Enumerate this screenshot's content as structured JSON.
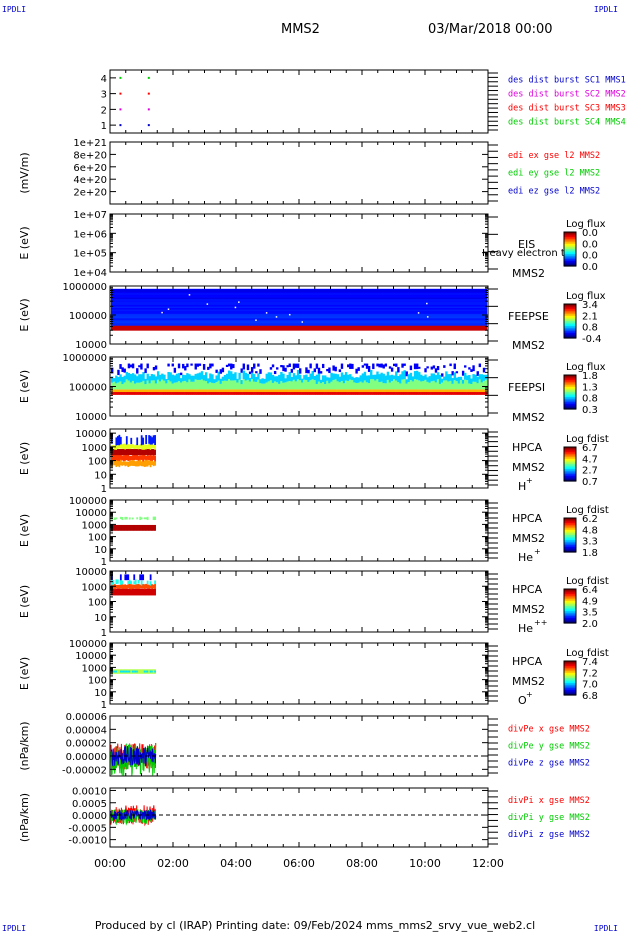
{
  "corner_label": "IPDLI",
  "header": {
    "spacecraft": "MMS2",
    "datetime": "03/Mar/2018 00:00"
  },
  "footer": "Produced by cl (IRAP)   Printing date: 09/Feb/2024   mms_mms2_srvy_vue_web2.cl",
  "colors": {
    "red": "#ff0000",
    "green": "#00cc00",
    "blue": "#0000cc",
    "magenta": "#dd00dd",
    "black": "#000000"
  },
  "chart_data": [
    {
      "type": "scatter",
      "panel": "burst-availability",
      "yticks": [
        "1",
        "2",
        "3",
        "4"
      ],
      "ylim": [
        0.5,
        4.5
      ],
      "series": [
        {
          "name": "des dist burst SC1 MMS1",
          "color": "#0000cc",
          "x_hours": [
            0.3,
            1.2
          ],
          "y": [
            1,
            1
          ]
        },
        {
          "name": "des dist burst SC2 MMS2",
          "color": "#dd00dd",
          "x_hours": [
            0.3,
            1.2
          ],
          "y": [
            2,
            2
          ]
        },
        {
          "name": "des dist burst SC3 MMS3",
          "color": "#ff0000",
          "x_hours": [
            0.3,
            1.2
          ],
          "y": [
            3,
            3
          ]
        },
        {
          "name": "des dist burst SC4 MMS4",
          "color": "#00cc00",
          "x_hours": [
            0.3,
            1.2
          ],
          "y": [
            4,
            4
          ]
        }
      ]
    },
    {
      "type": "line",
      "panel": "edi-e-field",
      "ylabel": "(mV/m)",
      "yticks": [
        "2e+20",
        "4e+20",
        "6e+20",
        "8e+20",
        "1e+21"
      ],
      "ylim": [
        0,
        1e+21
      ],
      "series": [
        {
          "name": "edi ex gse l2 MMS2",
          "color": "#ff0000",
          "values": []
        },
        {
          "name": "edi ey gse l2 MMS2",
          "color": "#00cc00",
          "values": []
        },
        {
          "name": "edi ez gse l2 MMS2",
          "color": "#0000cc",
          "values": []
        }
      ]
    },
    {
      "type": "heatmap",
      "panel": "eis",
      "ylabel": "E (eV)",
      "yticks": [
        "1e+04",
        "1e+05",
        "1e+06",
        "1e+07"
      ],
      "ylim": [
        10000,
        10000000
      ],
      "instrument": "EIS",
      "spacecraft": "MMS2",
      "overlay_text": "Heavy electron to",
      "colorbar_title": "Log flux",
      "colorbar_ticks": [
        "0.0",
        "0.0",
        "0.0",
        "0.0"
      ]
    },
    {
      "type": "heatmap",
      "panel": "feeps-electron",
      "ylabel": "E (eV)",
      "yticks": [
        "10000",
        "100000",
        "1000000"
      ],
      "ylim": [
        10000,
        1000000
      ],
      "instrument": "FEEPSE",
      "spacecraft": "MMS2",
      "colorbar_title": "Log flux",
      "colorbar_ticks": [
        "3.4",
        "2.1",
        "0.8",
        "-0.4"
      ],
      "x_range_hours": [
        0,
        12
      ]
    },
    {
      "type": "heatmap",
      "panel": "feeps-ion",
      "ylabel": "E (eV)",
      "yticks": [
        "10000",
        "100000",
        "1000000"
      ],
      "ylim": [
        10000,
        1000000
      ],
      "instrument": "FEEPSI",
      "spacecraft": "MMS2",
      "colorbar_title": "Log flux",
      "colorbar_ticks": [
        "1.8",
        "1.3",
        "0.8",
        "0.3"
      ],
      "x_range_hours": [
        0,
        12
      ]
    },
    {
      "type": "heatmap",
      "panel": "hpca-h",
      "ylabel": "E (eV)",
      "yticks": [
        "1",
        "10",
        "100",
        "1000",
        "10000"
      ],
      "ylim": [
        1,
        20000
      ],
      "instrument": "HPCA",
      "spacecraft": "MMS2",
      "species": "H",
      "charge": "+",
      "colorbar_title": "Log fdist",
      "colorbar_ticks": [
        "6.7",
        "4.7",
        "2.7",
        "0.7"
      ],
      "x_range_hours": [
        0,
        1.45
      ]
    },
    {
      "type": "heatmap",
      "panel": "hpca-he",
      "ylabel": "E (eV)",
      "yticks": [
        "1",
        "10",
        "100",
        "1000",
        "10000",
        "100000"
      ],
      "ylim": [
        1,
        100000
      ],
      "instrument": "HPCA",
      "spacecraft": "MMS2",
      "species": "He",
      "charge": "+",
      "colorbar_title": "Log fdist",
      "colorbar_ticks": [
        "6.2",
        "4.8",
        "3.3",
        "1.8"
      ],
      "x_range_hours": [
        0,
        1.45
      ]
    },
    {
      "type": "heatmap",
      "panel": "hpca-hepp",
      "ylabel": "E (eV)",
      "yticks": [
        "1",
        "10",
        "100",
        "1000",
        "10000"
      ],
      "ylim": [
        1,
        10000
      ],
      "instrument": "HPCA",
      "spacecraft": "MMS2",
      "species": "He",
      "charge": "++",
      "colorbar_title": "Log fdist",
      "colorbar_ticks": [
        "6.4",
        "4.9",
        "3.5",
        "2.0"
      ],
      "x_range_hours": [
        0,
        1.45
      ]
    },
    {
      "type": "heatmap",
      "panel": "hpca-o",
      "ylabel": "E (eV)",
      "yticks": [
        "1",
        "10",
        "100",
        "1000",
        "10000",
        "100000"
      ],
      "ylim": [
        1,
        100000
      ],
      "instrument": "HPCA",
      "spacecraft": "MMS2",
      "species": "O",
      "charge": "+",
      "colorbar_title": "Log fdist",
      "colorbar_ticks": [
        "7.4",
        "7.2",
        "7.0",
        "6.8"
      ],
      "x_range_hours": [
        0,
        1.45
      ]
    },
    {
      "type": "line",
      "panel": "divpe",
      "ylabel": "(nPa/km)",
      "yticks": [
        "-0.00002",
        "0.00000",
        "0.00002",
        "0.00004",
        "0.00006"
      ],
      "ylim": [
        -3e-05,
        6e-05
      ],
      "zero_line": true,
      "x_range_hours": [
        0,
        1.45
      ],
      "series": [
        {
          "name": "divPe x gse MMS2",
          "color": "#ff0000",
          "amplitude": 2e-05
        },
        {
          "name": "divPe y gse MMS2",
          "color": "#00cc00",
          "amplitude": 2.5e-05
        },
        {
          "name": "divPe z gse MMS2",
          "color": "#0000cc",
          "amplitude": 1.5e-05
        }
      ]
    },
    {
      "type": "line",
      "panel": "divpi",
      "ylabel": "(nPa/km)",
      "yticks": [
        "-0.0010",
        "-0.0005",
        "0.0000",
        "0.0005",
        "0.0010"
      ],
      "ylim": [
        -0.0013,
        0.0011
      ],
      "zero_line": true,
      "x_range_hours": [
        0,
        1.45
      ],
      "series": [
        {
          "name": "divPi x gse MMS2",
          "color": "#ff0000",
          "amplitude": 0.0004
        },
        {
          "name": "divPi y gse MMS2",
          "color": "#00cc00",
          "amplitude": 0.0003
        },
        {
          "name": "divPi z gse MMS2",
          "color": "#0000cc",
          "amplitude": 0.0002
        }
      ]
    }
  ],
  "x_axis": {
    "labels": [
      "00:00",
      "02:00",
      "04:00",
      "06:00",
      "08:00",
      "10:00",
      "12:00"
    ],
    "range_hours": [
      0,
      12
    ]
  }
}
